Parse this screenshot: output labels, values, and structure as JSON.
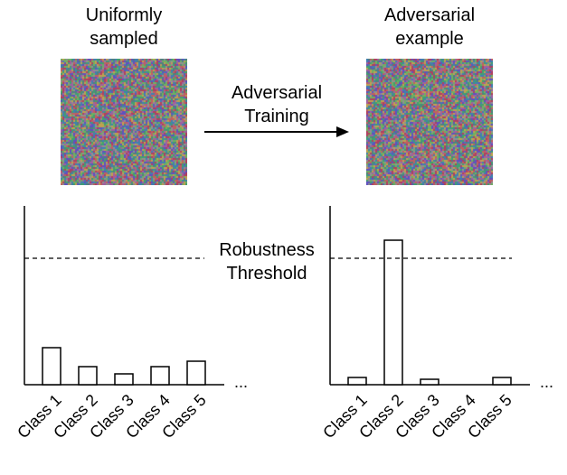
{
  "left_panel": {
    "title_line1": "Uniformly",
    "title_line2": "sampled",
    "bars": [
      {
        "label": "Class 1",
        "value": 0.41
      },
      {
        "label": "Class 2",
        "value": 0.2
      },
      {
        "label": "Class 3",
        "value": 0.12
      },
      {
        "label": "Class 4",
        "value": 0.2
      },
      {
        "label": "Class 5",
        "value": 0.26
      }
    ],
    "ellipsis": "...",
    "threshold": 1.4
  },
  "right_panel": {
    "title_line1": "Adversarial",
    "title_line2": "example",
    "bars": [
      {
        "label": "Class 1",
        "value": 0.08
      },
      {
        "label": "Class 2",
        "value": 1.6
      },
      {
        "label": "Class 3",
        "value": 0.06
      },
      {
        "label": "Class 4",
        "value": 0
      },
      {
        "label": "Class 5",
        "value": 0.08
      }
    ],
    "ellipsis": "...",
    "threshold": 1.4
  },
  "arrow": {
    "label_line1": "Adversarial",
    "label_line2": "Training"
  },
  "threshold_label_line1": "Robustness",
  "threshold_label_line2": "Threshold",
  "colors": {
    "noise_palette": [
      "#b04060",
      "#40a070",
      "#6050c0",
      "#c0a050",
      "#508080",
      "#a060a0",
      "#70b060",
      "#c06060",
      "#4080b0",
      "#909090"
    ]
  }
}
